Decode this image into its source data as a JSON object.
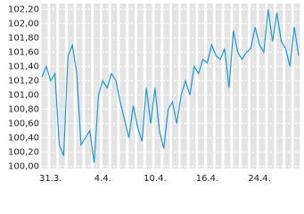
{
  "chart_data": {
    "type": "line",
    "categories": [
      null,
      null,
      "31.3.",
      null,
      null,
      null,
      null,
      null,
      null,
      null,
      null,
      null,
      null,
      null,
      "4.4.",
      null,
      null,
      null,
      null,
      null,
      null,
      null,
      null,
      null,
      null,
      null,
      "10.4.",
      null,
      null,
      null,
      null,
      null,
      null,
      null,
      null,
      null,
      null,
      null,
      "16.4.",
      null,
      null,
      null,
      null,
      null,
      null,
      null,
      null,
      null,
      null,
      null,
      "24.4.",
      null,
      null,
      null,
      null,
      null,
      null,
      null,
      null,
      null
    ],
    "series": [
      {
        "color": "#1a9bd7",
        "values": [
          101.25,
          101.4,
          101.2,
          101.3,
          100.3,
          100.15,
          101.55,
          101.7,
          101.3,
          100.3,
          100.4,
          100.5,
          100.05,
          101.0,
          101.2,
          101.1,
          101.3,
          101.2,
          100.9,
          100.65,
          100.4,
          100.85,
          100.55,
          100.35,
          101.1,
          100.6,
          101.1,
          100.5,
          100.25,
          100.8,
          100.9,
          100.6,
          101.0,
          101.2,
          101.0,
          101.4,
          101.3,
          101.5,
          101.45,
          101.7,
          101.55,
          101.5,
          101.65,
          101.1,
          101.9,
          101.6,
          101.5,
          101.6,
          101.65,
          101.95,
          101.7,
          101.6,
          102.2,
          101.75,
          102.15,
          101.75,
          101.65,
          101.4,
          101.95,
          101.55
        ]
      }
    ],
    "ylim": [
      99.97,
      102.28
    ],
    "yticks": [
      {
        "value": 100.0,
        "label": "100,00"
      },
      {
        "value": 100.2,
        "label": "100,20"
      },
      {
        "value": 100.4,
        "label": "100,40"
      },
      {
        "value": 100.6,
        "label": "100,60"
      },
      {
        "value": 100.8,
        "label": "100,80"
      },
      {
        "value": 101.0,
        "label": "101,00"
      },
      {
        "value": 101.2,
        "label": "101,20"
      },
      {
        "value": 101.4,
        "label": "101,40"
      },
      {
        "value": 101.6,
        "label": "101,60"
      },
      {
        "value": 101.8,
        "label": "101,80"
      },
      {
        "value": 102.0,
        "label": "102,00"
      },
      {
        "value": 102.2,
        "label": "102,20"
      }
    ],
    "grid": true
  }
}
